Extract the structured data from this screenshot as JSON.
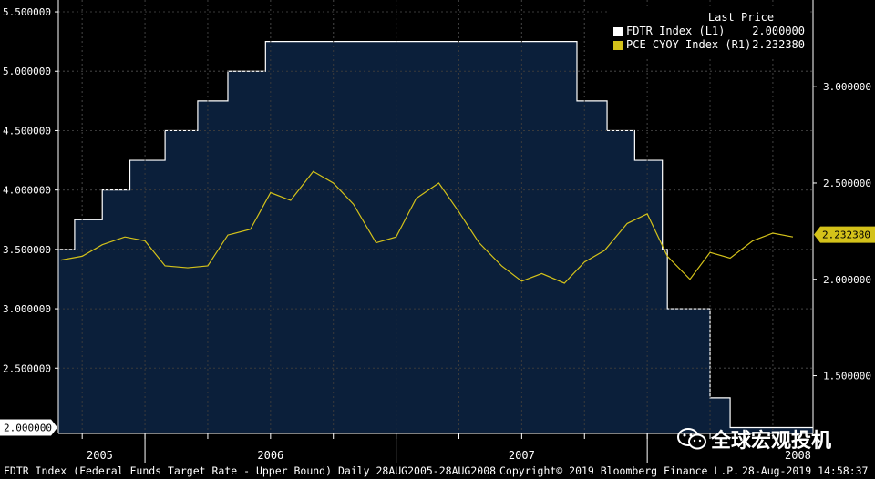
{
  "chart_data": {
    "type": "area-line",
    "title": "FDTR Index (Federal Funds Target Rate - Upper Bound)",
    "subtitle": "Daily 28AUG2005-28AUG2008",
    "legend": {
      "header": "Last Price",
      "placement": "top-right",
      "entries": [
        {
          "name": "FDTR Index  (L1)",
          "value": "2.000000",
          "color": "#ffffff"
        },
        {
          "name": "PCE CYOY Index  (R1)",
          "value": "2.232380",
          "color": "#d4c21a"
        }
      ]
    },
    "left_axis": {
      "ticks": [
        "5.500000",
        "5.000000",
        "4.500000",
        "4.000000",
        "3.500000",
        "3.000000",
        "2.500000"
      ],
      "tick_values": [
        5.5,
        5.0,
        4.5,
        4.0,
        3.5,
        3.0,
        2.5
      ],
      "range": [
        1.95,
        5.6
      ],
      "last_value_label": "2.000000",
      "last_value": 2.0
    },
    "right_axis": {
      "ticks": [
        "3.000000",
        "2.500000",
        "2.000000",
        "1.500000"
      ],
      "tick_values": [
        3.0,
        2.5,
        2.0,
        1.5
      ],
      "range": [
        1.2,
        3.45
      ],
      "last_value_label": "2.232380",
      "last_value": 2.23238
    },
    "x_axis": {
      "labels": [
        "2005",
        "2006",
        "2007",
        "2008"
      ],
      "range": [
        2005.655,
        2008.66
      ],
      "label_positions": [
        2005.82,
        2006.5,
        2007.5,
        2008.6
      ],
      "separators": [
        2006.0,
        2007.0,
        2008.0
      ],
      "gridlines": [
        2005.75,
        2006.0,
        2006.25,
        2006.5,
        2006.75,
        2007.0,
        2007.25,
        2007.5,
        2007.75,
        2008.0,
        2008.25,
        2008.5
      ]
    },
    "series": [
      {
        "name": "FDTR Index",
        "axis": "left",
        "style": "step-area",
        "color": "#ffffff",
        "fill": "#0b1f3a",
        "points": [
          [
            2005.655,
            3.5
          ],
          [
            2005.72,
            3.75
          ],
          [
            2005.83,
            4.0
          ],
          [
            2005.94,
            4.25
          ],
          [
            2006.08,
            4.5
          ],
          [
            2006.21,
            4.75
          ],
          [
            2006.33,
            5.0
          ],
          [
            2006.48,
            5.25
          ],
          [
            2007.72,
            4.75
          ],
          [
            2007.84,
            4.5
          ],
          [
            2007.95,
            4.25
          ],
          [
            2008.06,
            3.5
          ],
          [
            2008.08,
            3.0
          ],
          [
            2008.25,
            2.25
          ],
          [
            2008.33,
            2.0
          ],
          [
            2008.66,
            2.0
          ]
        ]
      },
      {
        "name": "PCE CYOY Index",
        "axis": "right",
        "style": "line",
        "color": "#d4c21a",
        "points": [
          [
            2005.665,
            2.1
          ],
          [
            2005.75,
            2.12
          ],
          [
            2005.83,
            2.18
          ],
          [
            2005.92,
            2.22
          ],
          [
            2006.0,
            2.2
          ],
          [
            2006.08,
            2.07
          ],
          [
            2006.17,
            2.06
          ],
          [
            2006.25,
            2.07
          ],
          [
            2006.33,
            2.23
          ],
          [
            2006.42,
            2.26
          ],
          [
            2006.5,
            2.45
          ],
          [
            2006.58,
            2.41
          ],
          [
            2006.67,
            2.56
          ],
          [
            2006.75,
            2.5
          ],
          [
            2006.83,
            2.39
          ],
          [
            2006.92,
            2.19
          ],
          [
            2007.0,
            2.22
          ],
          [
            2007.08,
            2.42
          ],
          [
            2007.17,
            2.5
          ],
          [
            2007.25,
            2.35
          ],
          [
            2007.33,
            2.19
          ],
          [
            2007.42,
            2.07
          ],
          [
            2007.5,
            1.99
          ],
          [
            2007.58,
            2.03
          ],
          [
            2007.67,
            1.98
          ],
          [
            2007.75,
            2.09
          ],
          [
            2007.83,
            2.15
          ],
          [
            2007.92,
            2.29
          ],
          [
            2008.0,
            2.34
          ],
          [
            2008.08,
            2.12
          ],
          [
            2008.17,
            2.0
          ],
          [
            2008.25,
            2.14
          ],
          [
            2008.33,
            2.11
          ],
          [
            2008.42,
            2.2
          ],
          [
            2008.5,
            2.24
          ],
          [
            2008.58,
            2.22
          ]
        ]
      }
    ],
    "grid": true
  },
  "footer": {
    "description": "FDTR Index (Federal Funds Target Rate - Upper Bound)  Daily 28AUG2005-28AUG2008",
    "copyright": "Copyright© 2019 Bloomberg Finance L.P.",
    "timestamp": "28-Aug-2019 14:58:37"
  },
  "watermark": {
    "text": "全球宏观投机",
    "icon": "wechat-icon"
  },
  "colors": {
    "background": "#000000",
    "plot_fill": "#0b1f3a",
    "grid": "#3a3a3a",
    "fdtr": "#ffffff",
    "pce": "#d4c21a"
  }
}
